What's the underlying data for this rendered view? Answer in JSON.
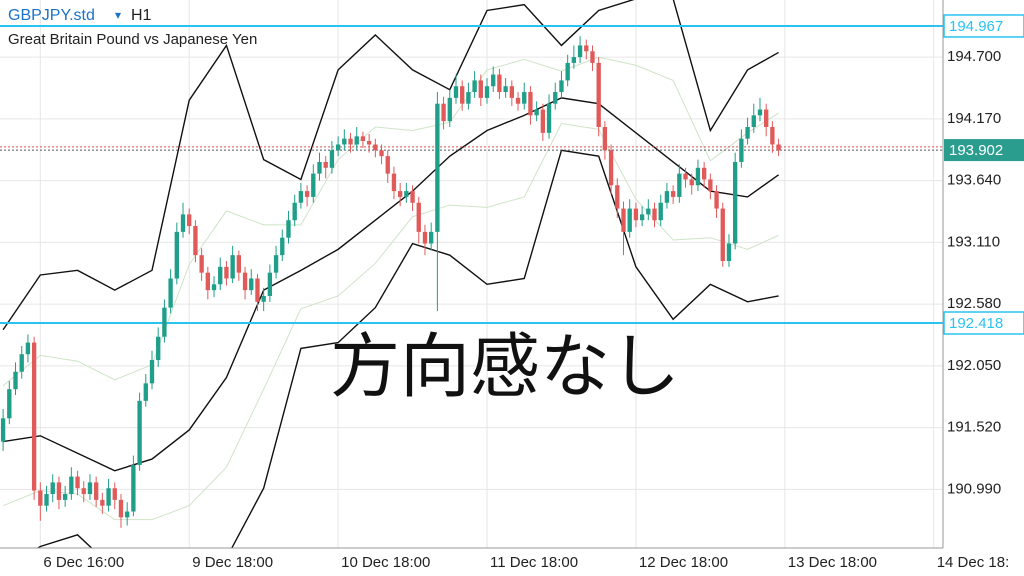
{
  "header": {
    "symbol": "GBPJPY.std",
    "menu": "▾",
    "timeframe": "H1",
    "description": "Great Britain Pound vs Japanese Yen"
  },
  "overlay_text": "方向感なし",
  "chart_data": {
    "type": "candlestick",
    "bull_color": "#1f9e89",
    "bear_color": "#e05a5a",
    "xlim": [
      -0.5,
      151.5
    ],
    "xticks": [
      {
        "value": 6,
        "label": "6 Dec 16:00"
      },
      {
        "value": 30,
        "label": "9 Dec 18:00"
      },
      {
        "value": 54,
        "label": "10 Dec 18:00"
      },
      {
        "value": 78,
        "label": "11 Dec 18:00"
      },
      {
        "value": 102,
        "label": "12 Dec 18:00"
      },
      {
        "value": 126,
        "label": "13 Dec 18:00"
      },
      {
        "value": 150,
        "label": "14 Dec 18:"
      }
    ],
    "ylim": [
      190.487,
      195.19
    ],
    "yticks": [
      {
        "value": 194.7,
        "label": "194.700"
      },
      {
        "value": 194.17,
        "label": "194.170"
      },
      {
        "value": 193.64,
        "label": "193.640"
      },
      {
        "value": 193.11,
        "label": "193.110"
      },
      {
        "value": 192.58,
        "label": "192.580"
      },
      {
        "value": 192.05,
        "label": "192.050"
      },
      {
        "value": 191.52,
        "label": "191.520"
      },
      {
        "value": 190.99,
        "label": "190.990"
      }
    ],
    "grid": true,
    "level_lines": [
      194.967,
      192.418
    ],
    "level_color": "#29c3ef",
    "bid": 193.902,
    "bid_color": "#2a9d8f",
    "ask": 193.93,
    "ask_color": "#d9534f",
    "ohlc": [
      [
        191.4,
        191.68,
        191.32,
        191.6
      ],
      [
        191.6,
        191.92,
        191.55,
        191.85
      ],
      [
        191.85,
        192.08,
        191.8,
        192.0
      ],
      [
        192.0,
        192.22,
        191.94,
        192.15
      ],
      [
        192.15,
        192.32,
        192.08,
        192.25
      ],
      [
        192.25,
        192.3,
        190.9,
        190.98
      ],
      [
        190.98,
        191.05,
        190.72,
        190.85
      ],
      [
        190.85,
        191.02,
        190.8,
        190.95
      ],
      [
        190.95,
        191.12,
        190.88,
        191.05
      ],
      [
        191.05,
        191.1,
        190.82,
        190.9
      ],
      [
        190.9,
        191.02,
        190.84,
        190.95
      ],
      [
        190.95,
        191.18,
        190.9,
        191.1
      ],
      [
        191.1,
        191.15,
        190.94,
        191.0
      ],
      [
        191.0,
        191.06,
        190.88,
        190.95
      ],
      [
        190.95,
        191.12,
        190.9,
        191.05
      ],
      [
        191.05,
        191.1,
        190.84,
        190.9
      ],
      [
        190.9,
        190.96,
        190.78,
        190.85
      ],
      [
        190.85,
        191.08,
        190.8,
        191.0
      ],
      [
        191.0,
        191.05,
        190.82,
        190.9
      ],
      [
        190.9,
        190.95,
        190.66,
        190.75
      ],
      [
        190.75,
        190.88,
        190.68,
        190.8
      ],
      [
        190.8,
        191.28,
        190.76,
        191.2
      ],
      [
        191.2,
        191.82,
        191.15,
        191.75
      ],
      [
        191.75,
        191.98,
        191.7,
        191.9
      ],
      [
        191.9,
        192.18,
        191.85,
        192.1
      ],
      [
        192.1,
        192.38,
        192.04,
        192.3
      ],
      [
        192.3,
        192.62,
        192.25,
        192.55
      ],
      [
        192.55,
        192.88,
        192.5,
        192.8
      ],
      [
        192.8,
        193.28,
        192.75,
        193.2
      ],
      [
        193.2,
        193.45,
        193.15,
        193.35
      ],
      [
        193.35,
        193.4,
        193.18,
        193.25
      ],
      [
        193.25,
        193.3,
        192.94,
        193.0
      ],
      [
        193.0,
        193.06,
        192.78,
        192.85
      ],
      [
        192.85,
        192.9,
        192.62,
        192.7
      ],
      [
        192.7,
        192.82,
        192.64,
        192.75
      ],
      [
        192.75,
        192.98,
        192.7,
        192.9
      ],
      [
        192.9,
        192.95,
        192.74,
        192.8
      ],
      [
        192.8,
        193.08,
        192.76,
        193.0
      ],
      [
        193.0,
        193.04,
        192.78,
        192.85
      ],
      [
        192.85,
        192.9,
        192.62,
        192.7
      ],
      [
        192.7,
        192.88,
        192.66,
        192.8
      ],
      [
        192.8,
        192.84,
        192.52,
        192.6
      ],
      [
        192.6,
        192.72,
        192.52,
        192.65
      ],
      [
        192.65,
        192.92,
        192.6,
        192.85
      ],
      [
        192.85,
        193.08,
        192.8,
        193.0
      ],
      [
        193.0,
        193.22,
        192.95,
        193.15
      ],
      [
        193.15,
        193.38,
        193.1,
        193.3
      ],
      [
        193.3,
        193.52,
        193.25,
        193.45
      ],
      [
        193.45,
        193.62,
        193.4,
        193.55
      ],
      [
        193.55,
        193.6,
        193.42,
        193.5
      ],
      [
        193.5,
        193.78,
        193.45,
        193.7
      ],
      [
        193.7,
        193.88,
        193.64,
        193.8
      ],
      [
        193.8,
        193.85,
        193.66,
        193.75
      ],
      [
        193.75,
        193.98,
        193.7,
        193.9
      ],
      [
        193.9,
        194.02,
        193.85,
        193.95
      ],
      [
        193.95,
        194.08,
        193.9,
        194.0
      ],
      [
        194.0,
        194.05,
        193.88,
        193.95
      ],
      [
        193.95,
        194.1,
        193.9,
        194.02
      ],
      [
        194.02,
        194.06,
        193.92,
        193.98
      ],
      [
        193.98,
        194.04,
        193.88,
        193.95
      ],
      [
        193.95,
        194.0,
        193.84,
        193.9
      ],
      [
        193.9,
        193.95,
        193.78,
        193.85
      ],
      [
        193.85,
        193.9,
        193.62,
        193.7
      ],
      [
        193.7,
        193.76,
        193.48,
        193.55
      ],
      [
        193.55,
        193.62,
        193.42,
        193.5
      ],
      [
        193.5,
        193.62,
        193.45,
        193.55
      ],
      [
        193.55,
        193.6,
        193.38,
        193.45
      ],
      [
        193.45,
        193.5,
        193.1,
        193.2
      ],
      [
        193.2,
        193.26,
        193.0,
        193.1
      ],
      [
        193.1,
        193.28,
        193.04,
        193.2
      ],
      [
        193.2,
        194.4,
        192.52,
        194.3
      ],
      [
        194.3,
        194.36,
        194.08,
        194.15
      ],
      [
        194.15,
        194.42,
        194.1,
        194.35
      ],
      [
        194.35,
        194.55,
        194.3,
        194.45
      ],
      [
        194.45,
        194.5,
        194.24,
        194.3
      ],
      [
        194.3,
        194.48,
        194.25,
        194.4
      ],
      [
        194.4,
        194.58,
        194.35,
        194.5
      ],
      [
        194.5,
        194.55,
        194.28,
        194.35
      ],
      [
        194.35,
        194.52,
        194.3,
        194.45
      ],
      [
        194.45,
        194.62,
        194.4,
        194.55
      ],
      [
        194.55,
        194.6,
        194.34,
        194.4
      ],
      [
        194.4,
        194.52,
        194.35,
        194.45
      ],
      [
        194.45,
        194.5,
        194.28,
        194.35
      ],
      [
        194.35,
        194.4,
        194.24,
        194.3
      ],
      [
        194.3,
        194.48,
        194.25,
        194.4
      ],
      [
        194.4,
        194.45,
        194.12,
        194.2
      ],
      [
        194.2,
        194.32,
        194.15,
        194.25
      ],
      [
        194.25,
        194.3,
        193.98,
        194.05
      ],
      [
        194.05,
        194.38,
        194.0,
        194.3
      ],
      [
        194.3,
        194.48,
        194.25,
        194.4
      ],
      [
        194.4,
        194.58,
        194.35,
        194.5
      ],
      [
        194.5,
        194.72,
        194.45,
        194.65
      ],
      [
        194.65,
        194.8,
        194.6,
        194.7
      ],
      [
        194.7,
        194.88,
        194.65,
        194.8
      ],
      [
        194.8,
        194.85,
        194.68,
        194.75
      ],
      [
        194.75,
        194.8,
        194.58,
        194.65
      ],
      [
        194.65,
        194.7,
        194.02,
        194.1
      ],
      [
        194.1,
        194.15,
        193.82,
        193.9
      ],
      [
        193.9,
        193.95,
        193.52,
        193.6
      ],
      [
        193.6,
        193.66,
        193.32,
        193.4
      ],
      [
        193.4,
        193.46,
        193.0,
        193.2
      ],
      [
        193.2,
        193.48,
        193.15,
        193.4
      ],
      [
        193.4,
        193.45,
        193.24,
        193.3
      ],
      [
        193.3,
        193.42,
        193.25,
        193.35
      ],
      [
        193.35,
        193.48,
        193.3,
        193.4
      ],
      [
        193.4,
        193.45,
        193.24,
        193.3
      ],
      [
        193.3,
        193.52,
        193.25,
        193.45
      ],
      [
        193.45,
        193.62,
        193.4,
        193.55
      ],
      [
        193.55,
        193.6,
        193.44,
        193.5
      ],
      [
        193.5,
        193.78,
        193.45,
        193.7
      ],
      [
        193.7,
        193.75,
        193.58,
        193.65
      ],
      [
        193.65,
        193.7,
        193.52,
        193.6
      ],
      [
        193.6,
        193.82,
        193.55,
        193.75
      ],
      [
        193.75,
        193.8,
        193.58,
        193.65
      ],
      [
        193.65,
        193.7,
        193.48,
        193.55
      ],
      [
        193.55,
        193.6,
        193.32,
        193.4
      ],
      [
        193.4,
        193.45,
        192.9,
        192.95
      ],
      [
        192.95,
        193.18,
        192.9,
        193.1
      ],
      [
        193.1,
        193.88,
        193.05,
        193.8
      ],
      [
        193.8,
        194.08,
        193.75,
        194.0
      ],
      [
        194.0,
        194.18,
        193.95,
        194.1
      ],
      [
        194.1,
        194.3,
        194.05,
        194.2
      ],
      [
        194.2,
        194.35,
        194.15,
        194.25
      ],
      [
        194.25,
        194.3,
        194.02,
        194.1
      ],
      [
        194.1,
        194.15,
        193.88,
        193.95
      ],
      [
        193.95,
        194.0,
        193.85,
        193.9
      ]
    ],
    "band_x": [
      0,
      6,
      12,
      18,
      24,
      30,
      36,
      42,
      48,
      54,
      60,
      66,
      72,
      78,
      84,
      90,
      96,
      102,
      108,
      114,
      120,
      125
    ],
    "bands": [
      {
        "color": "#111111",
        "values": [
          192.36,
          192.83,
          192.87,
          192.7,
          192.87,
          194.33,
          194.8,
          193.82,
          193.65,
          194.59,
          194.89,
          194.59,
          194.42,
          195.1,
          195.15,
          194.8,
          195.1,
          195.2,
          195.2,
          194.07,
          194.59,
          194.74
        ]
      },
      {
        "color": "#111111",
        "values": [
          191.4,
          191.45,
          191.3,
          191.15,
          191.25,
          191.5,
          191.95,
          192.7,
          192.87,
          193.05,
          193.3,
          193.55,
          193.85,
          194.07,
          194.2,
          194.35,
          194.3,
          194.05,
          193.8,
          193.55,
          193.5,
          193.69
        ]
      },
      {
        "color": "#111111",
        "values": [
          190.3,
          190.5,
          190.6,
          190.3,
          190.2,
          190.2,
          190.4,
          191.0,
          192.2,
          192.25,
          192.55,
          193.1,
          193.0,
          192.75,
          192.8,
          193.9,
          193.85,
          192.9,
          192.45,
          192.75,
          192.6,
          192.65
        ]
      },
      {
        "color": "#cfe3c8",
        "values": [
          191.88,
          192.14,
          192.09,
          191.93,
          192.06,
          192.92,
          193.38,
          193.26,
          193.26,
          193.82,
          194.1,
          194.07,
          194.14,
          194.59,
          194.68,
          194.58,
          194.7,
          194.63,
          194.5,
          193.81,
          194.05,
          194.22
        ]
      },
      {
        "color": "#cfe3c8",
        "values": [
          190.85,
          190.98,
          190.95,
          190.73,
          190.73,
          190.85,
          191.18,
          191.85,
          192.54,
          192.65,
          192.93,
          193.33,
          193.43,
          193.41,
          193.5,
          194.13,
          194.08,
          193.48,
          193.13,
          193.15,
          193.05,
          193.17
        ]
      }
    ]
  }
}
